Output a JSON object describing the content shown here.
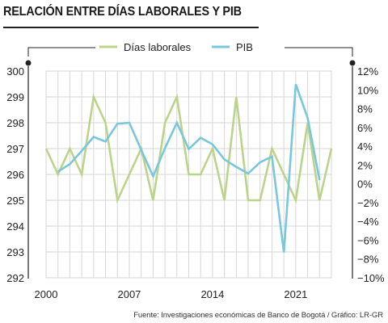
{
  "title": "RELACIÓN ENTRE DÍAS LABORALES Y PIB",
  "source": "Fuente: Investigaciones económicas de Banco de Bogotá / Gráfico: LR-GR",
  "colors": {
    "dias_laborales": "#bcd48a",
    "pib": "#79c7dc",
    "grid": "#d6d6d6",
    "axis": "#222222"
  },
  "chart_data": {
    "type": "line",
    "title": "RELACIÓN ENTRE DÍAS LABORALES Y PIB",
    "legend": [
      "Días laborales",
      "PIB"
    ],
    "legend_position": "top",
    "grid": true,
    "x_ticks": [
      "2000",
      "2007",
      "2014",
      "2021"
    ],
    "x_range": [
      2000,
      2024
    ],
    "y_left": {
      "range": [
        292,
        300
      ],
      "ticks": [
        "300",
        "299",
        "298",
        "297",
        "296",
        "295",
        "294",
        "293",
        "292"
      ]
    },
    "y_right": {
      "range": [
        -10,
        12
      ],
      "ticks": [
        "12%",
        "10%",
        "8%",
        "6%",
        "4%",
        "2%",
        "0%",
        "−2%",
        "−4%",
        "−6%",
        "−8%",
        "−10%"
      ]
    },
    "series": [
      {
        "name": "Días laborales",
        "axis": "left",
        "x": [
          2000,
          2001,
          2002,
          2003,
          2004,
          2005,
          2006,
          2007,
          2008,
          2009,
          2010,
          2011,
          2012,
          2013,
          2014,
          2015,
          2016,
          2017,
          2018,
          2019,
          2020,
          2021,
          2022,
          2023,
          2024
        ],
        "values": [
          297,
          296,
          297,
          296,
          299,
          298,
          295,
          296,
          297,
          295,
          298,
          299,
          296,
          296,
          297,
          295,
          299,
          295,
          295,
          297,
          296,
          295,
          298,
          295,
          297
        ]
      },
      {
        "name": "PIB",
        "axis": "right",
        "x": [
          2001,
          2002,
          2003,
          2004,
          2005,
          2006,
          2007,
          2008,
          2009,
          2010,
          2011,
          2012,
          2013,
          2014,
          2015,
          2016,
          2017,
          2018,
          2019,
          2020,
          2021,
          2022,
          2023
        ],
        "values": [
          1.3,
          2.1,
          3.5,
          5.0,
          4.5,
          6.4,
          6.5,
          3.6,
          0.8,
          3.8,
          6.5,
          3.7,
          4.9,
          4.2,
          2.6,
          1.8,
          1.1,
          2.3,
          2.9,
          -7.3,
          10.6,
          7.0,
          0.4
        ]
      }
    ]
  }
}
